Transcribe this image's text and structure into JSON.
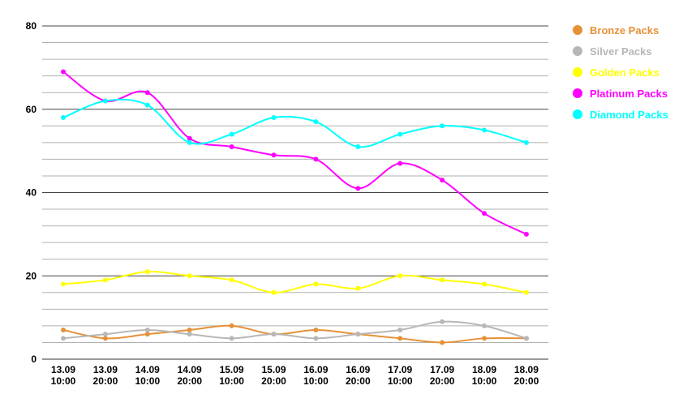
{
  "chart_data": {
    "type": "line",
    "title": "",
    "xlabel": "",
    "ylabel": "",
    "categories": [
      [
        "13.09",
        "10:00"
      ],
      [
        "13.09",
        "20:00"
      ],
      [
        "14.09",
        "10:00"
      ],
      [
        "14.09",
        "20:00"
      ],
      [
        "15.09",
        "10:00"
      ],
      [
        "15.09",
        "20:00"
      ],
      [
        "16.09",
        "10:00"
      ],
      [
        "16.09",
        "20:00"
      ],
      [
        "17.09",
        "10:00"
      ],
      [
        "17.09",
        "20:00"
      ],
      [
        "18.09",
        "10:00"
      ],
      [
        "18.09",
        "20:00"
      ]
    ],
    "ylim": [
      0,
      80
    ],
    "yticks": [
      0,
      20,
      40,
      60,
      80
    ],
    "minor_grid_step": 4,
    "grid": true,
    "smooth": true,
    "legend_position": "right",
    "series": [
      {
        "name": "Bronze Packs",
        "color": "#e69138",
        "values": [
          7,
          5,
          6,
          7,
          8,
          6,
          7,
          6,
          5,
          4,
          5,
          5
        ]
      },
      {
        "name": "Silver Packs",
        "color": "#b7b7b7",
        "values": [
          5,
          6,
          7,
          6,
          5,
          6,
          5,
          6,
          7,
          9,
          8,
          5
        ]
      },
      {
        "name": "Golden Packs",
        "color": "#ffff00",
        "values": [
          18,
          19,
          21,
          20,
          19,
          16,
          18,
          17,
          20,
          19,
          18,
          16
        ]
      },
      {
        "name": "Platinum Packs",
        "color": "#ff00ff",
        "values": [
          69,
          62,
          64,
          53,
          51,
          49,
          48,
          41,
          47,
          43,
          35,
          30
        ]
      },
      {
        "name": "Diamond Packs",
        "color": "#00ffff",
        "values": [
          58,
          62,
          61,
          52,
          54,
          58,
          57,
          51,
          54,
          56,
          55,
          52
        ]
      }
    ]
  }
}
